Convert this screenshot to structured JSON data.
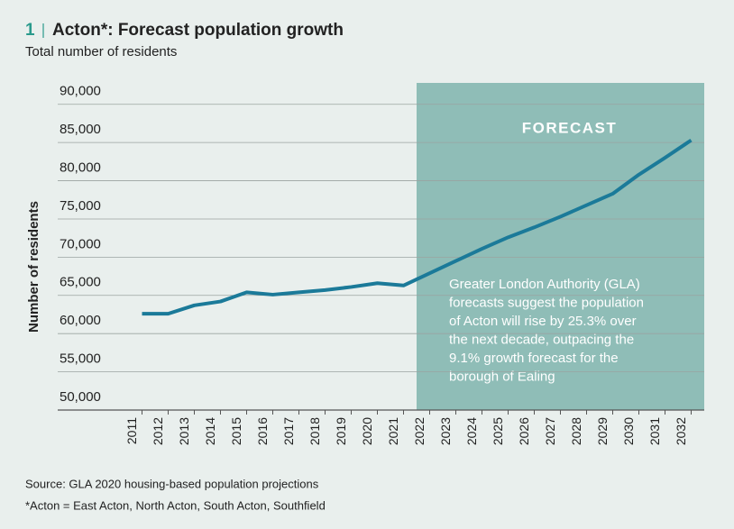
{
  "chart_data": {
    "type": "line",
    "title_number": "1",
    "title": "Acton*: Forecast population growth",
    "subtitle": "Total number of residents",
    "y_label": "Number of residents",
    "categories": [
      "2011",
      "2012",
      "2013",
      "2014",
      "2015",
      "2016",
      "2017",
      "2018",
      "2019",
      "2020",
      "2021",
      "2022",
      "2023",
      "2024",
      "2025",
      "2026",
      "2027",
      "2028",
      "2029",
      "2030",
      "2031",
      "2032"
    ],
    "series": [
      {
        "name": "Residents",
        "color": "#1b7a99",
        "values": [
          62600,
          62600,
          63700,
          64200,
          65400,
          65100,
          65400,
          65700,
          66100,
          66600,
          66300,
          67900,
          69500,
          71100,
          72600,
          73900,
          75300,
          76800,
          78300,
          80800,
          83000,
          85300
        ]
      }
    ],
    "ylim": [
      50000,
      92800
    ],
    "yticks": [
      {
        "value": 50000,
        "label": "50,000"
      },
      {
        "value": 55000,
        "label": "55,000"
      },
      {
        "value": 60000,
        "label": "60,000"
      },
      {
        "value": 65000,
        "label": "65,000"
      },
      {
        "value": 70000,
        "label": "70,000"
      },
      {
        "value": 75000,
        "label": "75,000"
      },
      {
        "value": 80000,
        "label": "80,000"
      },
      {
        "value": 85000,
        "label": "85,000"
      },
      {
        "value": 90000,
        "label": "90,000"
      }
    ],
    "grid": true,
    "forecast_from": "2022",
    "forecast_color": "#8fbdb7",
    "forecast_label": "FORECAST",
    "annotation": [
      "Greater London Authority (GLA)",
      "forecasts suggest the population",
      "of Acton will rise by 25.3% over",
      "the next decade, outpacing the",
      "9.1% growth forecast for the",
      "borough of Ealing"
    ],
    "source": "Source: GLA 2020 housing-based population projections",
    "note": "*Acton = East Acton, North Acton, South Acton, Southfield"
  }
}
